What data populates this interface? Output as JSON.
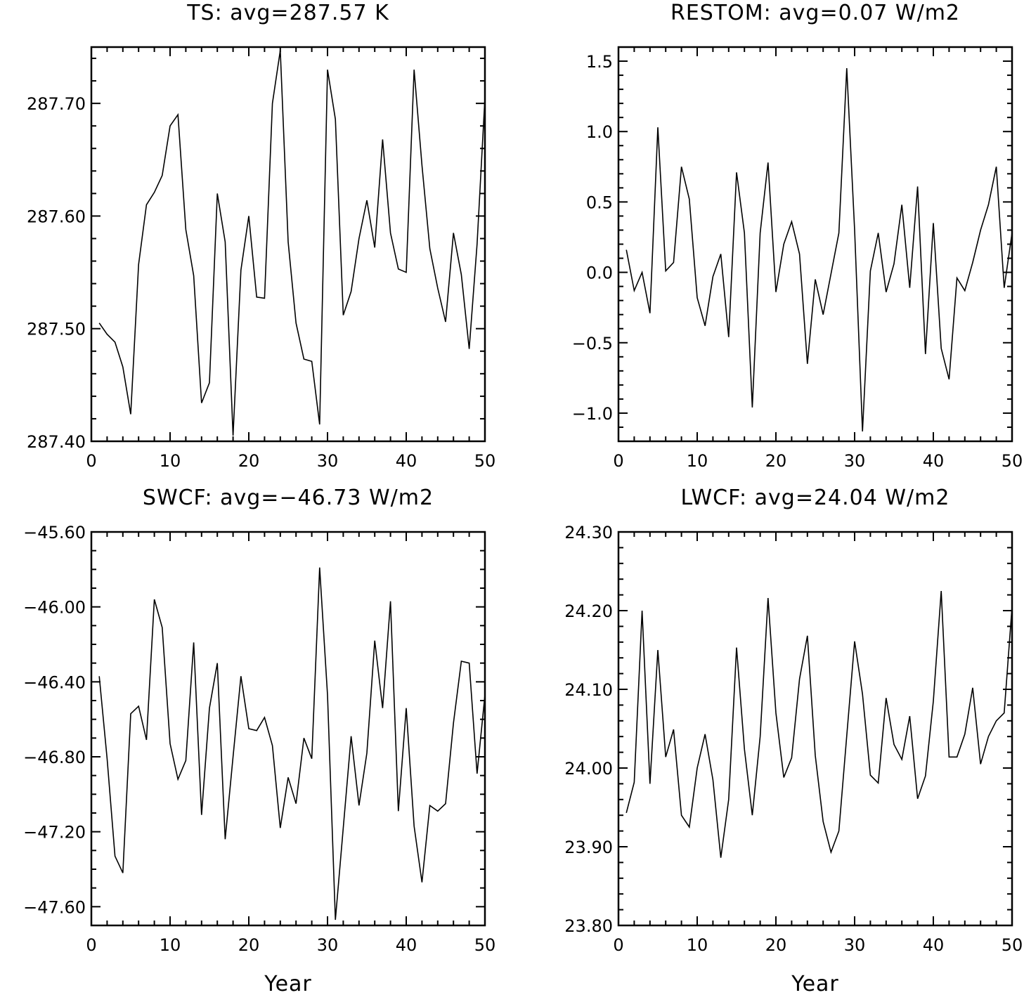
{
  "chart_data": [
    {
      "type": "line",
      "title": "TS: avg=287.57 K",
      "xlabel": "",
      "ylabel": "",
      "xlim": [
        0,
        50
      ],
      "ylim": [
        287.4,
        287.75
      ],
      "x_ticks": [
        0,
        10,
        20,
        30,
        40,
        50
      ],
      "x_tick_labels": [
        "0",
        "10",
        "20",
        "30",
        "40",
        "50"
      ],
      "y_ticks": [
        287.4,
        287.5,
        287.6,
        287.7
      ],
      "y_tick_labels": [
        "287.40",
        "287.50",
        "287.60",
        "287.70"
      ],
      "y_minor_step": 0.02,
      "grid": false,
      "x": [
        1,
        2,
        3,
        4,
        5,
        6,
        7,
        8,
        9,
        10,
        11,
        12,
        13,
        14,
        15,
        16,
        17,
        18,
        19,
        20,
        21,
        22,
        23,
        24,
        25,
        26,
        27,
        28,
        29,
        30,
        31,
        32,
        33,
        34,
        35,
        36,
        37,
        38,
        39,
        40,
        41,
        42,
        43,
        44,
        45,
        46,
        47,
        48,
        49,
        50
      ],
      "values": [
        287.505,
        287.495,
        287.488,
        287.466,
        287.424,
        287.557,
        287.61,
        287.621,
        287.636,
        287.68,
        287.69,
        287.588,
        287.547,
        287.434,
        287.452,
        287.62,
        287.577,
        287.405,
        287.552,
        287.6,
        287.528,
        287.527,
        287.7,
        287.747,
        287.577,
        287.505,
        287.473,
        287.471,
        287.415,
        287.73,
        287.686,
        287.512,
        287.533,
        287.58,
        287.614,
        287.572,
        287.668,
        287.585,
        287.553,
        287.55,
        287.73,
        287.645,
        287.571,
        287.536,
        287.506,
        287.585,
        287.548,
        287.482,
        287.575,
        287.705
      ]
    },
    {
      "type": "line",
      "title": "RESTOM: avg=0.07 W/m2",
      "xlabel": "",
      "ylabel": "",
      "xlim": [
        0,
        50
      ],
      "ylim": [
        -1.2,
        1.6
      ],
      "x_ticks": [
        0,
        10,
        20,
        30,
        40,
        50
      ],
      "x_tick_labels": [
        "0",
        "10",
        "20",
        "30",
        "40",
        "50"
      ],
      "y_ticks": [
        -1.0,
        -0.5,
        0.0,
        0.5,
        1.0,
        1.5
      ],
      "y_tick_labels": [
        "−1.0",
        "−0.5",
        "0.0",
        "0.5",
        "1.0",
        "1.5"
      ],
      "y_minor_step": 0.1,
      "grid": false,
      "x": [
        1,
        2,
        3,
        4,
        5,
        6,
        7,
        8,
        9,
        10,
        11,
        12,
        13,
        14,
        15,
        16,
        17,
        18,
        19,
        20,
        21,
        22,
        23,
        24,
        25,
        26,
        27,
        28,
        29,
        30,
        31,
        32,
        33,
        34,
        35,
        36,
        37,
        38,
        39,
        40,
        41,
        42,
        43,
        44,
        45,
        46,
        47,
        48,
        49,
        50
      ],
      "values": [
        0.16,
        -0.13,
        0.0,
        -0.29,
        1.03,
        0.01,
        0.07,
        0.75,
        0.52,
        -0.18,
        -0.38,
        -0.03,
        0.13,
        -0.46,
        0.71,
        0.28,
        -0.96,
        0.28,
        0.78,
        -0.14,
        0.2,
        0.36,
        0.13,
        -0.65,
        -0.05,
        -0.3,
        -0.01,
        0.28,
        1.45,
        0.3,
        -1.13,
        0.01,
        0.28,
        -0.14,
        0.06,
        0.48,
        -0.11,
        0.61,
        -0.58,
        0.35,
        -0.54,
        -0.76,
        -0.04,
        -0.13,
        0.07,
        0.3,
        0.48,
        0.75,
        -0.11,
        0.28
      ]
    },
    {
      "type": "line",
      "title": "SWCF: avg=−46.73 W/m2",
      "xlabel": "Year",
      "ylabel": "",
      "xlim": [
        0,
        50
      ],
      "ylim": [
        -47.7,
        -45.6
      ],
      "x_ticks": [
        0,
        10,
        20,
        30,
        40,
        50
      ],
      "x_tick_labels": [
        "0",
        "10",
        "20",
        "30",
        "40",
        "50"
      ],
      "y_ticks": [
        -47.6,
        -47.2,
        -46.8,
        -46.4,
        -46.0,
        -45.6
      ],
      "y_tick_labels": [
        "−47.60",
        "−47.20",
        "−46.80",
        "−46.40",
        "−46.00",
        "−45.60"
      ],
      "y_minor_step": 0.1,
      "grid": false,
      "x": [
        1,
        2,
        3,
        4,
        5,
        6,
        7,
        8,
        9,
        10,
        11,
        12,
        13,
        14,
        15,
        16,
        17,
        18,
        19,
        20,
        21,
        22,
        23,
        24,
        25,
        26,
        27,
        28,
        29,
        30,
        31,
        32,
        33,
        34,
        35,
        36,
        37,
        38,
        39,
        40,
        41,
        42,
        43,
        44,
        45,
        46,
        47,
        48,
        49,
        50
      ],
      "values": [
        -46.37,
        -46.81,
        -47.33,
        -47.42,
        -46.57,
        -46.53,
        -46.71,
        -45.96,
        -46.11,
        -46.73,
        -46.92,
        -46.82,
        -46.19,
        -47.11,
        -46.54,
        -46.3,
        -47.24,
        -46.8,
        -46.37,
        -46.65,
        -46.66,
        -46.59,
        -46.74,
        -47.18,
        -46.91,
        -47.05,
        -46.7,
        -46.81,
        -45.79,
        -46.47,
        -47.67,
        -47.18,
        -46.69,
        -47.06,
        -46.78,
        -46.18,
        -46.54,
        -45.97,
        -47.09,
        -46.54,
        -47.17,
        -47.47,
        -47.06,
        -47.09,
        -47.05,
        -46.62,
        -46.29,
        -46.3,
        -46.89,
        -46.47
      ]
    },
    {
      "type": "line",
      "title": "LWCF: avg=24.04 W/m2",
      "xlabel": "Year",
      "ylabel": "",
      "xlim": [
        0,
        50
      ],
      "ylim": [
        23.8,
        24.3
      ],
      "x_ticks": [
        0,
        10,
        20,
        30,
        40,
        50
      ],
      "x_tick_labels": [
        "0",
        "10",
        "20",
        "30",
        "40",
        "50"
      ],
      "y_ticks": [
        23.8,
        23.9,
        24.0,
        24.1,
        24.2,
        24.3
      ],
      "y_tick_labels": [
        "23.80",
        "23.90",
        "24.00",
        "24.10",
        "24.20",
        "24.30"
      ],
      "y_minor_step": 0.02,
      "grid": false,
      "x": [
        1,
        2,
        3,
        4,
        5,
        6,
        7,
        8,
        9,
        10,
        11,
        12,
        13,
        14,
        15,
        16,
        17,
        18,
        19,
        20,
        21,
        22,
        23,
        24,
        25,
        26,
        27,
        28,
        29,
        30,
        31,
        32,
        33,
        34,
        35,
        36,
        37,
        38,
        39,
        40,
        41,
        42,
        43,
        44,
        45,
        46,
        47,
        48,
        49,
        50
      ],
      "values": [
        23.943,
        23.982,
        24.2,
        23.98,
        24.15,
        24.014,
        24.049,
        23.94,
        23.925,
        24.0,
        24.043,
        23.985,
        23.886,
        23.96,
        24.153,
        24.024,
        23.94,
        24.04,
        24.216,
        24.07,
        23.988,
        24.013,
        24.113,
        24.168,
        24.016,
        23.932,
        23.893,
        23.92,
        24.041,
        24.161,
        24.094,
        23.991,
        23.981,
        24.089,
        24.03,
        24.011,
        24.066,
        23.961,
        23.99,
        24.085,
        24.225,
        24.014,
        24.014,
        24.043,
        24.102,
        24.005,
        24.04,
        24.06,
        24.07,
        24.205
      ]
    }
  ]
}
